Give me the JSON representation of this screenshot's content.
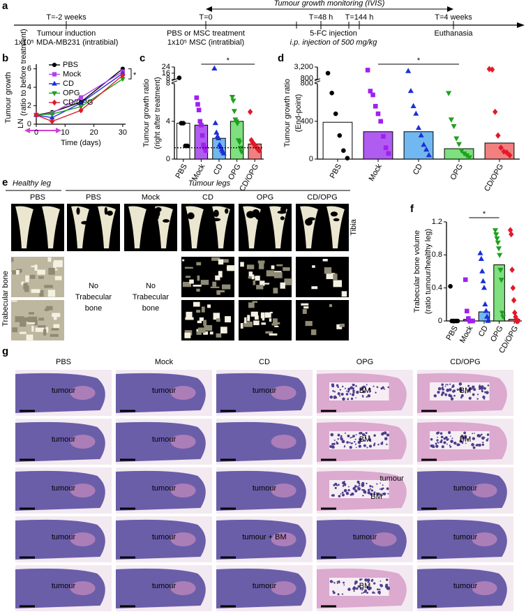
{
  "timeline": {
    "panel": "a",
    "monitoring": "Tumour growth monitoring (IVIS)",
    "events": [
      {
        "time": "T=-2 weeks",
        "lines": [
          "Tumour induction",
          "1x10⁵ MDA-MB231 (intratibial)"
        ]
      },
      {
        "time": "T=0",
        "lines": [
          "PBS or MSC treatment",
          "1x10⁵ MSC (intratibial)"
        ]
      },
      {
        "time": "T=48 h",
        "lines": []
      },
      {
        "time": "T=144 h",
        "lines": []
      },
      {
        "time": "T=4 weeks",
        "lines": [
          "Euthanasia"
        ]
      }
    ],
    "injection": [
      "5-FC injection",
      "i.p. injection of 500 mg/kg"
    ]
  },
  "chart_data": [
    {
      "type": "line",
      "panel": "b",
      "x": [
        0,
        5.5,
        15.5,
        30
      ],
      "xlim": [
        0,
        31
      ],
      "ylim": [
        0,
        6.5
      ],
      "xticks": [
        0,
        10,
        20,
        30
      ],
      "yticks": [
        0,
        2,
        4,
        6
      ],
      "xlabel": "Time (days)",
      "ylabel": [
        "Tumour growth",
        "LN",
        "(ratio to before treatment)"
      ],
      "annotation": "*",
      "series": [
        {
          "name": "PBS",
          "color": "#000000",
          "marker": "circle",
          "values": [
            1,
            1.3,
            2.4,
            6.0
          ]
        },
        {
          "name": "Mock",
          "color": "#b040f0",
          "marker": "square",
          "values": [
            1,
            1.2,
            2.9,
            5.7
          ]
        },
        {
          "name": "CD",
          "color": "#1c2fd8",
          "marker": "triangle",
          "values": [
            1,
            0.7,
            2.3,
            5.5
          ]
        },
        {
          "name": "OPG",
          "color": "#1ea01e",
          "marker": "triangle-down",
          "values": [
            1,
            1.1,
            1.9,
            4.9
          ]
        },
        {
          "name": "CD/OPG",
          "color": "#e01a2a",
          "marker": "diamond",
          "values": [
            1,
            0.3,
            1.5,
            5.3
          ]
        }
      ]
    },
    {
      "type": "bar",
      "panel": "c",
      "ylabel": [
        "Tumour growth ratio",
        "(right after treatment)"
      ],
      "categories": [
        "PBS",
        "Mock",
        "CD",
        "OPG",
        "CD/OPG"
      ],
      "ylim": [
        0,
        24
      ],
      "axis_break": 8,
      "yticks": [
        0,
        4,
        8,
        16,
        24
      ],
      "hline": 1.2,
      "values": [
        3.8,
        3.6,
        2.2,
        4.0,
        1.6
      ],
      "bar_colors": [
        "#ffffff",
        "#b05cf0",
        "#72b8f0",
        "#7ee07e",
        "#f28080"
      ],
      "point_colors": [
        "#000000",
        "#a020f0",
        "#1c2fd8",
        "#1ea01e",
        "#e01a2a"
      ],
      "markers": [
        "circle",
        "square",
        "triangle",
        "triangle-down",
        "diamond"
      ],
      "points": [
        [
          10,
          3.8,
          3.8,
          1.4,
          1.4
        ],
        [
          6.5,
          5.8,
          5.2,
          4,
          3.6,
          2.5,
          1.5,
          1.2,
          0.9
        ],
        [
          22,
          3.8,
          2.8,
          2.4,
          2.2,
          1.5,
          1.3,
          1.0,
          0.8,
          0.6
        ],
        [
          6.6,
          6.2,
          5.1,
          4.2,
          4.0,
          3.8,
          2.0,
          1.8,
          1.2,
          0.8
        ],
        [
          5.0,
          2.0,
          1.8,
          1.6,
          1.5,
          1.3,
          1.2,
          1.0,
          0.9
        ]
      ],
      "significance": {
        "label": "*",
        "between": [
          "Mock",
          "CD/OPG"
        ]
      }
    },
    {
      "type": "bar",
      "panel": "d",
      "ylabel": [
        "Tumour growth ratio",
        "(End-point)"
      ],
      "categories": [
        "PBS",
        "Mock",
        "CD",
        "OPG",
        "CD/OPG"
      ],
      "ylim": [
        0,
        3200
      ],
      "axis_break": 800,
      "yticks": [
        0,
        400,
        800,
        {
          "value": 3200,
          "label": "3,200"
        }
      ],
      "values": [
        390,
        290,
        290,
        110,
        170
      ],
      "bar_colors": [
        "#ffffff",
        "#b05cf0",
        "#72b8f0",
        "#7ee07e",
        "#f28080"
      ],
      "point_colors": [
        "#000000",
        "#a020f0",
        "#1c2fd8",
        "#1ea01e",
        "#e01a2a"
      ],
      "markers": [
        "circle",
        "square",
        "triangle",
        "triangle-down",
        "diamond"
      ],
      "points": [
        [
          2000,
          700,
          480,
          250,
          90,
          10
        ],
        [
          2600,
          720,
          680,
          560,
          480,
          400,
          240,
          120,
          60
        ],
        [
          2400,
          720,
          560,
          480,
          330,
          250,
          150,
          100,
          40
        ],
        [
          700,
          420,
          350,
          220,
          160,
          90,
          60,
          40,
          20
        ],
        [
          2800,
          2700,
          500,
          250,
          120,
          80,
          70,
          40
        ]
      ],
      "significance": {
        "label": "*",
        "between": [
          "Mock",
          "OPG"
        ]
      }
    },
    {
      "type": "bar",
      "panel": "f",
      "ylabel": [
        "Trabecular bone volume",
        "(ratio tumour/healthy leg)"
      ],
      "categories": [
        "PBS",
        "Mock",
        "CD",
        "OPG",
        "CD/OPG"
      ],
      "ylim": [
        0,
        1.2
      ],
      "yticks": [
        0,
        0.4,
        0.8,
        1.2
      ],
      "values": [
        0.0,
        0.02,
        0.11,
        0.68,
        0.02
      ],
      "bar_colors": [
        "#ffffff",
        "#b05cf0",
        "#72b8f0",
        "#7ee07e",
        "#f28080"
      ],
      "point_colors": [
        "#000000",
        "#a020f0",
        "#1c2fd8",
        "#1ea01e",
        "#e01a2a"
      ],
      "markers": [
        "circle",
        "square",
        "triangle",
        "triangle-down",
        "diamond"
      ],
      "points": [
        [
          0.42,
          0,
          0,
          0,
          0,
          0
        ],
        [
          0.5,
          0.12,
          0.03,
          0,
          0,
          0
        ],
        [
          0.82,
          0.75,
          0.6,
          0.48,
          0.4,
          0.2,
          0.12,
          0.05,
          0
        ],
        [
          1.1,
          1.05,
          1.0,
          0.95,
          0.88,
          0.8,
          0.62,
          0.5,
          0.1,
          0.05
        ],
        [
          1.1,
          1.05,
          0.62,
          0.4,
          0.25,
          0.1,
          0.05,
          0,
          0,
          0
        ]
      ],
      "significance": {
        "label": "*",
        "between": [
          "Mock",
          "OPG"
        ]
      }
    }
  ],
  "panel_e": {
    "panel": "e",
    "groups": [
      "Healthy leg",
      "Tumour legs"
    ],
    "columns": [
      "PBS",
      "PBS",
      "Mock",
      "CD",
      "OPG",
      "CD/OPG"
    ],
    "rows": [
      "Tibia",
      "Trabecular bone"
    ],
    "trabecular_notes": [
      null,
      [
        "No",
        "Trabecular",
        "bone"
      ],
      [
        "No",
        "Trabecular",
        "bone"
      ],
      null,
      null,
      null
    ]
  },
  "panel_g": {
    "panel": "g",
    "columns": [
      "PBS",
      "Mock",
      "CD",
      "OPG",
      "CD/OPG"
    ],
    "labels": [
      [
        [
          "tumour"
        ],
        [
          "tumour"
        ],
        [
          "tumour"
        ],
        [
          "BM"
        ],
        [
          "BM"
        ]
      ],
      [
        [
          "tumour"
        ],
        [
          "tumour"
        ],
        [],
        [
          "BM"
        ],
        [
          "BM"
        ]
      ],
      [
        [
          "tumour"
        ],
        [
          "tumour"
        ],
        [
          "tumour"
        ],
        [
          "tumour",
          "BM"
        ],
        [
          "tumour"
        ]
      ],
      [
        [
          "tumour"
        ],
        [
          "tumour"
        ],
        [
          "tumour + BM"
        ],
        [
          "tumour"
        ],
        [
          "tumour"
        ]
      ],
      [
        [
          "tumour"
        ],
        [
          "tumour"
        ],
        [
          "tumour"
        ],
        [
          "BM"
        ],
        [
          "tumour"
        ]
      ]
    ]
  }
}
